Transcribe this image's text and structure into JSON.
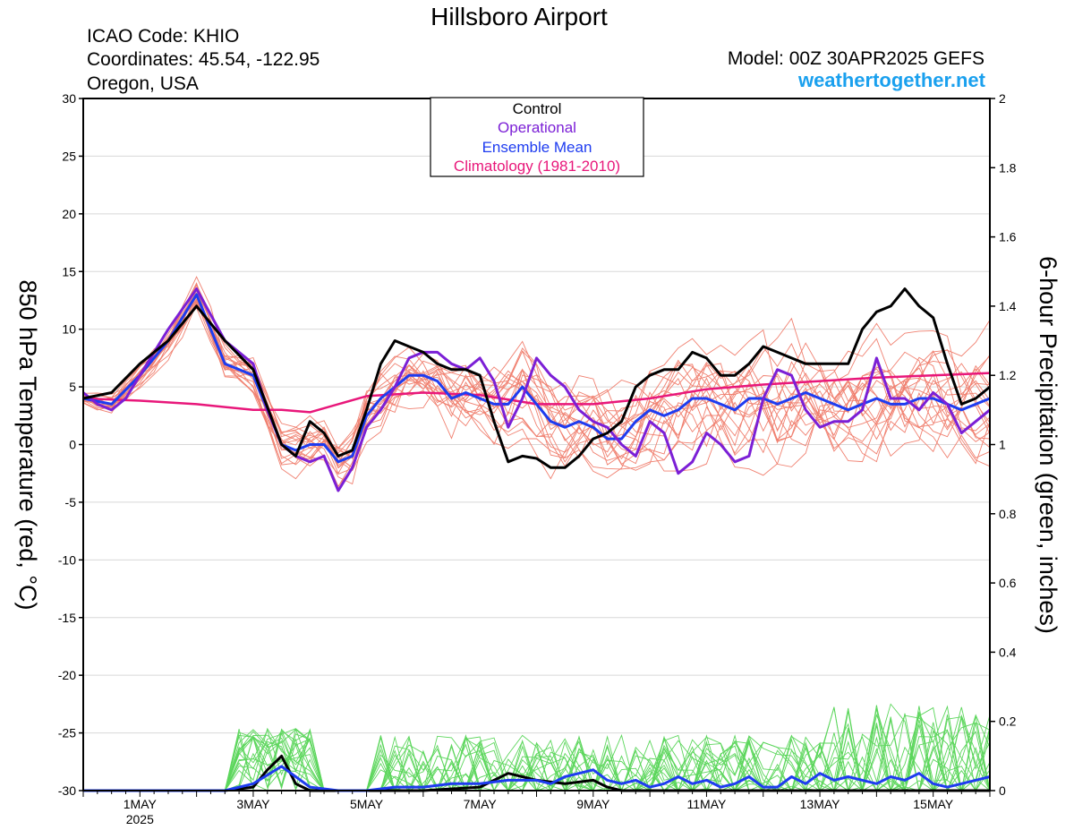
{
  "page": {
    "title": "Hillsboro Airport",
    "icao_line": "ICAO Code: KHIO",
    "coords_line": "Coordinates: 45.54, -122.95",
    "region_line": "Oregon, USA",
    "model_line": "Model: 00Z 30APR2025 GEFS",
    "site": "weathertogether.net"
  },
  "colors": {
    "members": "#f08070",
    "precip_members": "#5cd65c",
    "control": "#000000",
    "operational": "#7b1fd6",
    "mean": "#1e3cf0",
    "climatology": "#e8177a",
    "site_text": "#1aa0ee"
  },
  "chart_data": {
    "type": "line",
    "x_unit": "day",
    "x_range": [
      "2025-04-30T00Z",
      "2025-05-16T00Z"
    ],
    "x_ticks": [
      {
        "label": "1MAY",
        "sub": "2025",
        "day": 1
      },
      {
        "label": "3MAY",
        "day": 3
      },
      {
        "label": "5MAY",
        "day": 5
      },
      {
        "label": "7MAY",
        "day": 7
      },
      {
        "label": "9MAY",
        "day": 9
      },
      {
        "label": "11MAY",
        "day": 11
      },
      {
        "label": "13MAY",
        "day": 13
      },
      {
        "label": "15MAY",
        "day": 15
      }
    ],
    "y_left": {
      "label": "850 hPa Temperature (red, °C)",
      "range": [
        -30,
        30
      ],
      "ticks": [
        "30",
        "25",
        "20",
        "15",
        "10",
        "5",
        "0",
        "-5",
        "-10",
        "-15",
        "-20",
        "-25",
        "-30"
      ],
      "grid": true
    },
    "y_right": {
      "label": "6-hour Precipitation (green, inches)",
      "range": [
        0,
        2
      ],
      "ticks": [
        "2",
        "1.8",
        "1.6",
        "1.4",
        "1.2",
        "1",
        "0.8",
        "0.6",
        "0.4",
        "0.2",
        "0"
      ]
    },
    "legend": {
      "placement": "top-center",
      "entries": [
        {
          "label": "Control",
          "color": "#000000"
        },
        {
          "label": "Operational",
          "color": "#7b1fd6"
        },
        {
          "label": "Ensemble Mean",
          "color": "#1e3cf0"
        },
        {
          "label": "Climatology (1981-2010)",
          "color": "#e8177a"
        }
      ]
    },
    "temperature_series": [
      {
        "name": "Control",
        "color": "#000000",
        "width": 3,
        "points": [
          [
            0,
            4
          ],
          [
            0.5,
            4.5
          ],
          [
            1,
            7
          ],
          [
            1.5,
            9
          ],
          [
            2,
            12
          ],
          [
            2.5,
            9
          ],
          [
            3,
            6.5
          ],
          [
            3.5,
            0
          ],
          [
            3.75,
            -1
          ],
          [
            4,
            2
          ],
          [
            4.25,
            1
          ],
          [
            4.5,
            -1
          ],
          [
            4.75,
            -0.5
          ],
          [
            5,
            3
          ],
          [
            5.25,
            7
          ],
          [
            5.5,
            9
          ],
          [
            5.75,
            8.5
          ],
          [
            6,
            8
          ],
          [
            6.25,
            7
          ],
          [
            6.5,
            6.5
          ],
          [
            6.75,
            6.5
          ],
          [
            7,
            6
          ],
          [
            7.25,
            2
          ],
          [
            7.5,
            -1.5
          ],
          [
            7.75,
            -1
          ],
          [
            8,
            -1.2
          ],
          [
            8.25,
            -2
          ],
          [
            8.5,
            -2
          ],
          [
            8.75,
            -1
          ],
          [
            9,
            0.5
          ],
          [
            9.25,
            1
          ],
          [
            9.5,
            2
          ],
          [
            9.75,
            5
          ],
          [
            10,
            6
          ],
          [
            10.25,
            6.5
          ],
          [
            10.5,
            6.5
          ],
          [
            10.75,
            8
          ],
          [
            11,
            7.5
          ],
          [
            11.25,
            6
          ],
          [
            11.5,
            6
          ],
          [
            11.75,
            7
          ],
          [
            12,
            8.5
          ],
          [
            12.25,
            8
          ],
          [
            12.5,
            7.5
          ],
          [
            12.75,
            7
          ],
          [
            13,
            7
          ],
          [
            13.25,
            7
          ],
          [
            13.5,
            7
          ],
          [
            13.75,
            10
          ],
          [
            14,
            11.5
          ],
          [
            14.25,
            12
          ],
          [
            14.5,
            13.5
          ],
          [
            14.75,
            12
          ],
          [
            15,
            11
          ],
          [
            15.25,
            7
          ],
          [
            15.5,
            3.5
          ],
          [
            15.75,
            4
          ],
          [
            16,
            5
          ]
        ]
      },
      {
        "name": "Operational",
        "color": "#7b1fd6",
        "width": 3,
        "points": [
          [
            0,
            4.5
          ],
          [
            0.25,
            3.5
          ],
          [
            0.5,
            3
          ],
          [
            0.75,
            4
          ],
          [
            1,
            6
          ],
          [
            1.5,
            10
          ],
          [
            2,
            13.5
          ],
          [
            2.5,
            9
          ],
          [
            3,
            7
          ],
          [
            3.25,
            3
          ],
          [
            3.5,
            0
          ],
          [
            3.75,
            -1
          ],
          [
            4,
            -1.5
          ],
          [
            4.25,
            -1
          ],
          [
            4.5,
            -4
          ],
          [
            4.75,
            -2
          ],
          [
            5,
            1.5
          ],
          [
            5.25,
            3
          ],
          [
            5.5,
            5
          ],
          [
            5.75,
            7.5
          ],
          [
            6,
            8
          ],
          [
            6.25,
            8
          ],
          [
            6.5,
            7
          ],
          [
            6.75,
            6.5
          ],
          [
            7,
            7.5
          ],
          [
            7.25,
            5.5
          ],
          [
            7.5,
            1.5
          ],
          [
            7.75,
            4
          ],
          [
            8,
            7.5
          ],
          [
            8.25,
            6
          ],
          [
            8.5,
            5
          ],
          [
            8.75,
            3
          ],
          [
            9,
            2
          ],
          [
            9.25,
            1.5
          ],
          [
            9.5,
            0
          ],
          [
            9.75,
            -1
          ],
          [
            10,
            2
          ],
          [
            10.25,
            1
          ],
          [
            10.5,
            -2.5
          ],
          [
            10.75,
            -1.5
          ],
          [
            11,
            1
          ],
          [
            11.25,
            0
          ],
          [
            11.5,
            -1.5
          ],
          [
            11.75,
            -1
          ],
          [
            12,
            4
          ],
          [
            12.25,
            6.5
          ],
          [
            12.5,
            6
          ],
          [
            12.75,
            3
          ],
          [
            13,
            1.5
          ],
          [
            13.25,
            2
          ],
          [
            13.5,
            2
          ],
          [
            13.75,
            3
          ],
          [
            14,
            7.5
          ],
          [
            14.25,
            4
          ],
          [
            14.5,
            4
          ],
          [
            14.75,
            3
          ],
          [
            15,
            4.5
          ],
          [
            15.25,
            3.5
          ],
          [
            15.5,
            1
          ],
          [
            15.75,
            2
          ],
          [
            16,
            3
          ]
        ]
      },
      {
        "name": "Ensemble Mean",
        "color": "#1e3cf0",
        "width": 3,
        "points": [
          [
            0,
            4
          ],
          [
            0.5,
            3.5
          ],
          [
            1,
            6
          ],
          [
            1.5,
            9
          ],
          [
            2,
            13
          ],
          [
            2.5,
            7
          ],
          [
            3,
            6
          ],
          [
            3.5,
            0
          ],
          [
            3.75,
            -0.5
          ],
          [
            4,
            0
          ],
          [
            4.25,
            0
          ],
          [
            4.5,
            -1.5
          ],
          [
            4.75,
            -1
          ],
          [
            5,
            2.5
          ],
          [
            5.25,
            4
          ],
          [
            5.5,
            5
          ],
          [
            5.75,
            6
          ],
          [
            6,
            6
          ],
          [
            6.25,
            5.5
          ],
          [
            6.5,
            4
          ],
          [
            6.75,
            4.5
          ],
          [
            7,
            4
          ],
          [
            7.25,
            3.5
          ],
          [
            7.5,
            3.5
          ],
          [
            7.75,
            5
          ],
          [
            8,
            3.5
          ],
          [
            8.25,
            2
          ],
          [
            8.5,
            1.5
          ],
          [
            8.75,
            2
          ],
          [
            9,
            1.5
          ],
          [
            9.25,
            0.5
          ],
          [
            9.5,
            0.5
          ],
          [
            9.75,
            2
          ],
          [
            10,
            3
          ],
          [
            10.25,
            2.5
          ],
          [
            10.5,
            3
          ],
          [
            10.75,
            4
          ],
          [
            11,
            4
          ],
          [
            11.25,
            3.5
          ],
          [
            11.5,
            3
          ],
          [
            11.75,
            4
          ],
          [
            12,
            4
          ],
          [
            12.25,
            3.5
          ],
          [
            12.5,
            4
          ],
          [
            12.75,
            4.5
          ],
          [
            13,
            4
          ],
          [
            13.25,
            3.5
          ],
          [
            13.5,
            3
          ],
          [
            13.75,
            3.5
          ],
          [
            14,
            4
          ],
          [
            14.25,
            3.5
          ],
          [
            14.5,
            3.5
          ],
          [
            14.75,
            4
          ],
          [
            15,
            4
          ],
          [
            15.25,
            3.5
          ],
          [
            15.5,
            3
          ],
          [
            15.75,
            3.5
          ],
          [
            16,
            4
          ]
        ]
      },
      {
        "name": "Climatology (1981-2010)",
        "color": "#e8177a",
        "width": 2.5,
        "points": [
          [
            0,
            4
          ],
          [
            1,
            3.8
          ],
          [
            2,
            3.5
          ],
          [
            3,
            3
          ],
          [
            3.5,
            3
          ],
          [
            4,
            2.8
          ],
          [
            5,
            4.2
          ],
          [
            6,
            4.5
          ],
          [
            7,
            4.3
          ],
          [
            8,
            3.5
          ],
          [
            9,
            3.5
          ],
          [
            10,
            4
          ],
          [
            11,
            4.8
          ],
          [
            12,
            5.2
          ],
          [
            13,
            5.5
          ],
          [
            14,
            5.8
          ],
          [
            15,
            6
          ],
          [
            16,
            6.2
          ]
        ]
      }
    ],
    "precip_series": [
      {
        "name": "Control",
        "color": "#000000",
        "width": 3,
        "points": [
          [
            0,
            0
          ],
          [
            2.5,
            0
          ],
          [
            3,
            0.01
          ],
          [
            3.25,
            0.06
          ],
          [
            3.5,
            0.1
          ],
          [
            3.75,
            0.02
          ],
          [
            4,
            0
          ],
          [
            6,
            0
          ],
          [
            7,
            0.01
          ],
          [
            7.5,
            0.05
          ],
          [
            7.75,
            0.04
          ],
          [
            8,
            0.03
          ],
          [
            8.5,
            0.02
          ],
          [
            9,
            0.03
          ],
          [
            9.25,
            0.01
          ],
          [
            9.5,
            0
          ],
          [
            16,
            0
          ]
        ]
      },
      {
        "name": "Ensemble Mean",
        "color": "#1e3cf0",
        "width": 3,
        "points": [
          [
            0,
            0
          ],
          [
            2.5,
            0
          ],
          [
            3,
            0.02
          ],
          [
            3.5,
            0.07
          ],
          [
            3.75,
            0.04
          ],
          [
            4,
            0.01
          ],
          [
            4.5,
            0
          ],
          [
            5,
            0
          ],
          [
            5.5,
            0.01
          ],
          [
            6,
            0.01
          ],
          [
            6.5,
            0.02
          ],
          [
            7,
            0.02
          ],
          [
            7.5,
            0.03
          ],
          [
            8,
            0.03
          ],
          [
            8.25,
            0.02
          ],
          [
            8.5,
            0.04
          ],
          [
            8.75,
            0.05
          ],
          [
            9,
            0.06
          ],
          [
            9.25,
            0.03
          ],
          [
            9.5,
            0.02
          ],
          [
            9.75,
            0.03
          ],
          [
            10,
            0.01
          ],
          [
            10.25,
            0.02
          ],
          [
            10.5,
            0.04
          ],
          [
            10.75,
            0.02
          ],
          [
            11,
            0.03
          ],
          [
            11.25,
            0.01
          ],
          [
            11.5,
            0.02
          ],
          [
            11.75,
            0.04
          ],
          [
            12,
            0.01
          ],
          [
            12.25,
            0.01
          ],
          [
            12.5,
            0.04
          ],
          [
            12.75,
            0.02
          ],
          [
            13,
            0.05
          ],
          [
            13.25,
            0.03
          ],
          [
            13.5,
            0.04
          ],
          [
            13.75,
            0.03
          ],
          [
            14,
            0.02
          ],
          [
            14.25,
            0.04
          ],
          [
            14.5,
            0.03
          ],
          [
            14.75,
            0.05
          ],
          [
            15,
            0.02
          ],
          [
            15.25,
            0.01
          ],
          [
            15.5,
            0.02
          ],
          [
            15.75,
            0.03
          ],
          [
            16,
            0.04
          ]
        ]
      }
    ]
  }
}
